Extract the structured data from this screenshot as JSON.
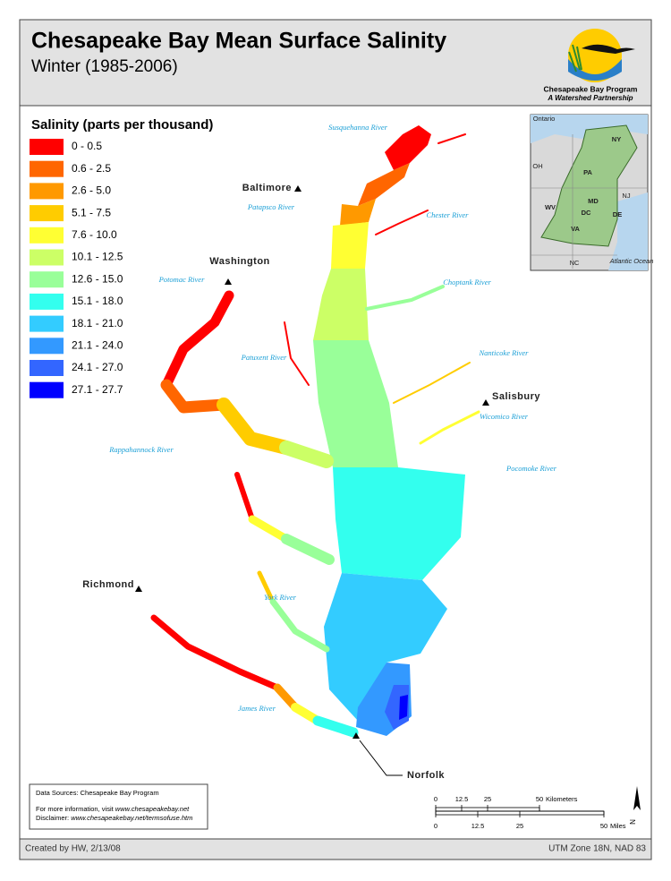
{
  "header": {
    "title": "Chesapeake Bay Mean Surface Salinity",
    "subtitle": "Winter (1985-2006)"
  },
  "logo": {
    "name": "Chesapeake Bay Program",
    "tagline": "A Watershed Partnership"
  },
  "legend": {
    "title": "Salinity (parts per thousand)",
    "items": [
      {
        "label": "0 - 0.5",
        "color": "#ff0000"
      },
      {
        "label": "0.6 - 2.5",
        "color": "#ff6600"
      },
      {
        "label": "2.6 - 5.0",
        "color": "#ff9900"
      },
      {
        "label": "5.1 - 7.5",
        "color": "#ffcc00"
      },
      {
        "label": "7.6 - 10.0",
        "color": "#ffff33"
      },
      {
        "label": "10.1 - 12.5",
        "color": "#ccff66"
      },
      {
        "label": "12.6 - 15.0",
        "color": "#99ff99"
      },
      {
        "label": "15.1 - 18.0",
        "color": "#33ffee"
      },
      {
        "label": "18.1 - 21.0",
        "color": "#33ccff"
      },
      {
        "label": "21.1 - 24.0",
        "color": "#3399ff"
      },
      {
        "label": "24.1 - 27.0",
        "color": "#3366ff"
      },
      {
        "label": "27.1 - 27.7",
        "color": "#0000ff"
      }
    ]
  },
  "cities": [
    "Baltimore",
    "Washington",
    "Salisbury",
    "Richmond",
    "Norfolk"
  ],
  "rivers": [
    "Susquehanna River",
    "Patapsco River",
    "Chester River",
    "Potomac River",
    "Choptank River",
    "Patuxent River",
    "Nanticoke River",
    "Wicomico River",
    "Rappahannock River",
    "Pocomoke River",
    "York River",
    "James River"
  ],
  "inset": {
    "labels": [
      "Ontario",
      "NY",
      "OH",
      "PA",
      "NJ",
      "MD",
      "WV",
      "DC",
      "DE",
      "VA",
      "NC",
      "Atlantic Ocean"
    ]
  },
  "scale": {
    "km": {
      "ticks": [
        0,
        12.5,
        25,
        50
      ],
      "unit": "Kilometers"
    },
    "miles": {
      "ticks": [
        0,
        12.5,
        25,
        50
      ],
      "unit": "Miles"
    }
  },
  "north": "N",
  "info": {
    "sources": "Data Sources:  Chesapeake Bay Program",
    "more": "For more information, visit",
    "more_link": "www.chesapeakebay.net",
    "disclaimer": "Disclaimer:",
    "disclaimer_link": "www.chesapeakebay.net/termsofuse.htm"
  },
  "footer": {
    "credit": "Created by HW, 2/13/08",
    "projection": "UTM Zone 18N, NAD 83"
  }
}
